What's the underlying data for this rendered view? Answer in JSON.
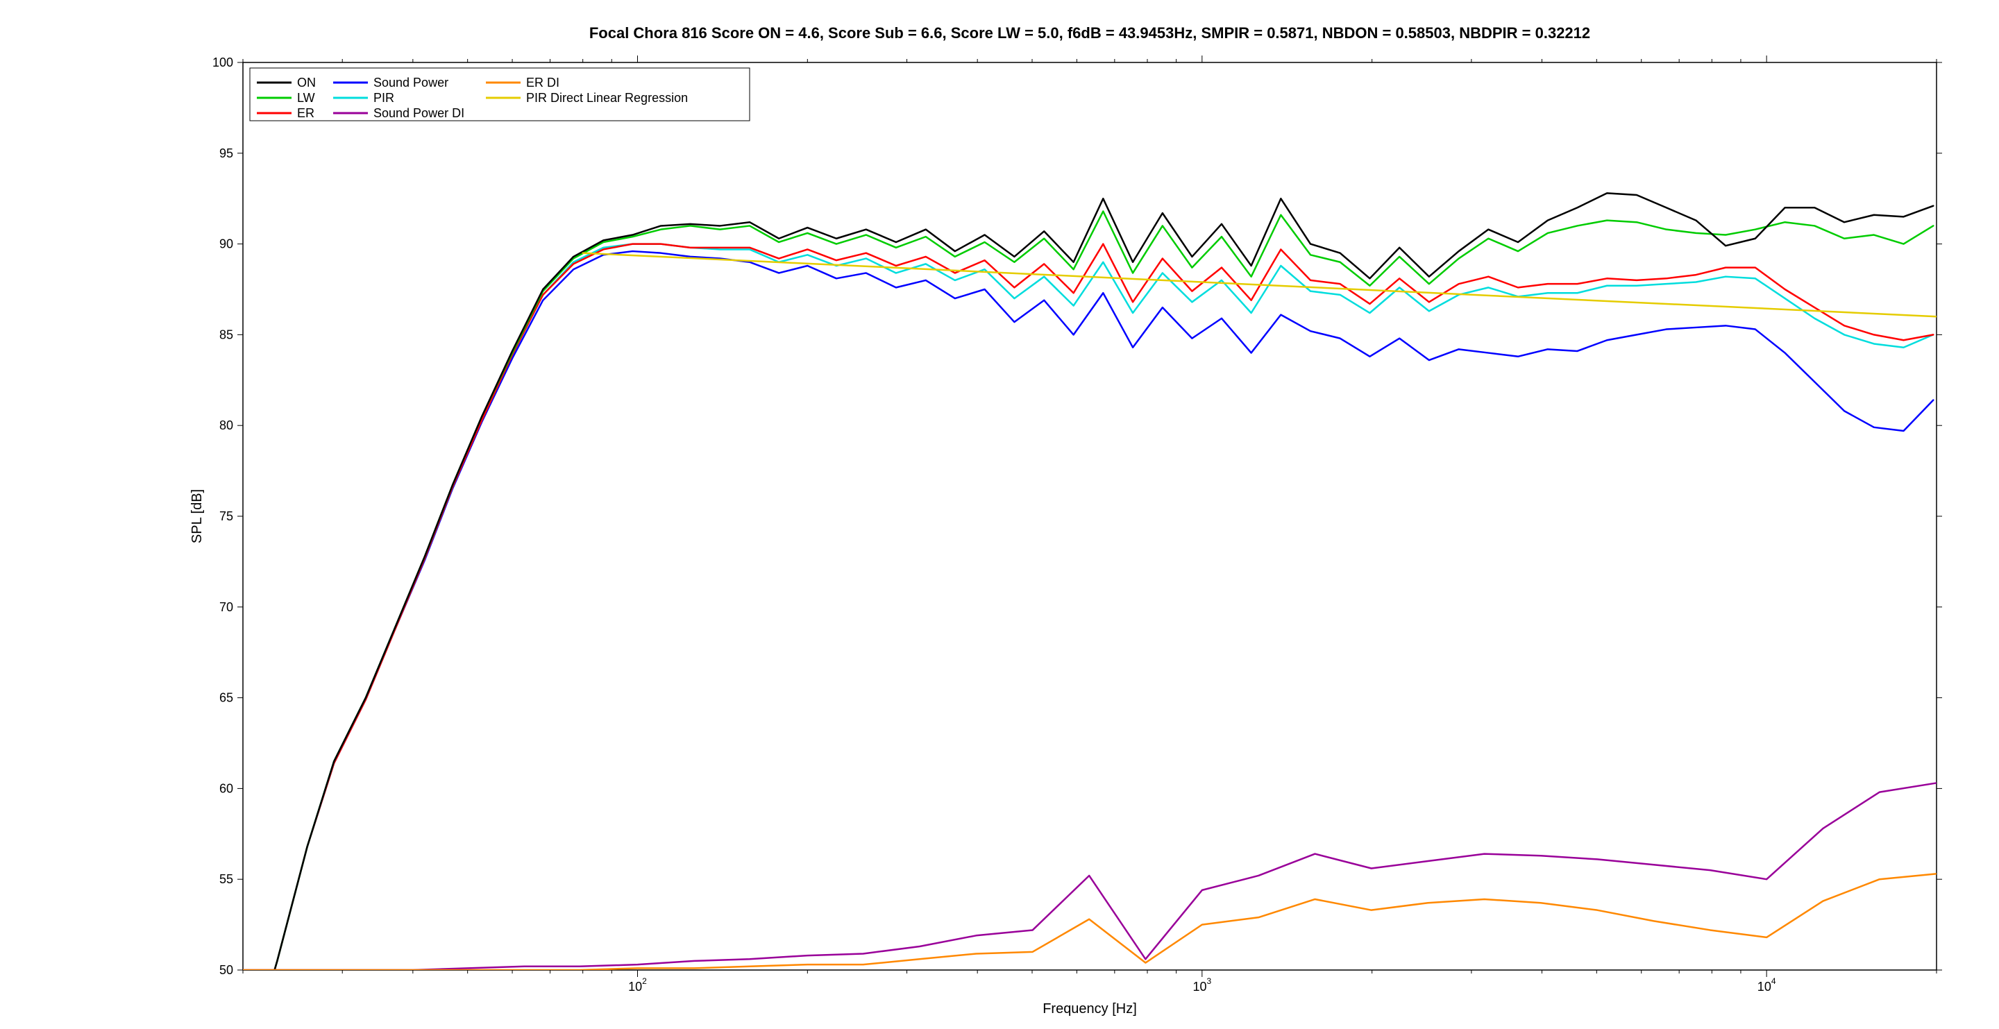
{
  "chart": {
    "type": "line",
    "title": "Focal Chora 816 Score ON = 4.6, Score Sub = 6.6, Score LW = 5.0, f6dB = 43.9453Hz, SMPIR = 0.5871, NBDON = 0.58503, NBDPIR = 0.32212",
    "title_fontsize": 22,
    "title_fontweight": "bold",
    "xlabel": "Frequency [Hz]",
    "ylabel": "SPL [dB]",
    "label_fontsize": 20,
    "tick_fontsize": 18,
    "background_color": "#ffffff",
    "plot_border_color": "#000000",
    "xscale": "log",
    "xlim": [
      20,
      20000
    ],
    "ylim": [
      50,
      100
    ],
    "ytick_step": 5,
    "x_major_ticks": [
      100,
      1000,
      10000
    ],
    "x_tick_labels": {
      "100": "10^2",
      "1000": "10^3",
      "10000": "10^4"
    },
    "legend": {
      "position": "top-left",
      "border_color": "#000000",
      "bg_color": "#ffffff",
      "fontsize": 18,
      "columns": 3,
      "entries": [
        {
          "label": "ON",
          "color": "#000000"
        },
        {
          "label": "LW",
          "color": "#00cc00"
        },
        {
          "label": "ER",
          "color": "#ff0000"
        },
        {
          "label": "Sound Power",
          "color": "#0000ff"
        },
        {
          "label": "PIR",
          "color": "#00dddd"
        },
        {
          "label": "Sound Power DI",
          "color": "#990099"
        },
        {
          "label": "ER DI",
          "color": "#ff8800"
        },
        {
          "label": "PIR Direct Linear Regression",
          "color": "#e5cc00"
        }
      ]
    },
    "pir_regression": {
      "start": [
        80,
        89.5
      ],
      "end": [
        20000,
        86.0
      ],
      "color": "#e5cc00"
    },
    "series": {
      "ON": {
        "color": "#000000",
        "x": [
          20,
          23,
          26,
          29,
          33,
          37,
          42,
          47,
          53,
          60,
          68,
          77,
          87,
          98,
          110,
          124,
          140,
          158,
          178,
          200,
          225,
          254,
          287,
          324,
          365,
          412,
          465,
          525,
          592,
          668,
          754,
          851,
          960,
          1083,
          1222,
          1379,
          1556,
          1756,
          1982,
          2237,
          2524,
          2849,
          3215,
          3628,
          4095,
          4621,
          5215,
          5886,
          6643,
          7497,
          8461,
          9549,
          10777,
          12163,
          13727,
          15493,
          17485,
          19734
        ],
        "y": [
          44.0,
          50.5,
          56.8,
          61.5,
          65.0,
          68.7,
          72.8,
          76.7,
          80.5,
          84.1,
          87.5,
          89.3,
          90.2,
          90.5,
          91.0,
          91.1,
          91.0,
          91.2,
          90.3,
          90.9,
          90.3,
          90.8,
          90.1,
          90.8,
          89.6,
          90.5,
          89.3,
          90.7,
          89.0,
          92.5,
          89.0,
          91.7,
          89.3,
          91.1,
          88.8,
          92.5,
          90.0,
          89.5,
          88.1,
          89.8,
          88.2,
          89.6,
          90.8,
          90.1,
          91.3,
          92.0,
          92.8,
          92.7,
          92.0,
          91.3,
          89.9,
          90.3,
          92.0,
          92.0,
          91.2,
          91.6,
          91.5,
          92.1
        ]
      },
      "LW": {
        "color": "#00cc00",
        "x": [
          20,
          23,
          26,
          29,
          33,
          37,
          42,
          47,
          53,
          60,
          68,
          77,
          87,
          98,
          110,
          124,
          140,
          158,
          178,
          200,
          225,
          254,
          287,
          324,
          365,
          412,
          465,
          525,
          592,
          668,
          754,
          851,
          960,
          1083,
          1222,
          1379,
          1556,
          1756,
          1982,
          2237,
          2524,
          2849,
          3215,
          3628,
          4095,
          4621,
          5215,
          5886,
          6643,
          7497,
          8461,
          9549,
          10777,
          12163,
          13727,
          15493,
          17485,
          19734
        ],
        "y": [
          44.0,
          50.5,
          56.8,
          61.5,
          65.0,
          68.7,
          72.8,
          76.7,
          80.5,
          84.0,
          87.4,
          89.2,
          90.1,
          90.4,
          90.8,
          91.0,
          90.8,
          91.0,
          90.1,
          90.6,
          90.0,
          90.5,
          89.8,
          90.4,
          89.3,
          90.1,
          89.0,
          90.3,
          88.6,
          91.8,
          88.4,
          91.0,
          88.7,
          90.4,
          88.2,
          91.6,
          89.4,
          89.0,
          87.7,
          89.3,
          87.8,
          89.2,
          90.3,
          89.6,
          90.6,
          91.0,
          91.3,
          91.2,
          90.8,
          90.6,
          90.5,
          90.8,
          91.2,
          91.0,
          90.3,
          90.5,
          90.0,
          91.0
        ]
      },
      "ER": {
        "color": "#ff0000",
        "x": [
          20,
          23,
          26,
          29,
          33,
          37,
          42,
          47,
          53,
          60,
          68,
          77,
          87,
          98,
          110,
          124,
          140,
          158,
          178,
          200,
          225,
          254,
          287,
          324,
          365,
          412,
          465,
          525,
          592,
          668,
          754,
          851,
          960,
          1083,
          1222,
          1379,
          1556,
          1756,
          1982,
          2237,
          2524,
          2849,
          3215,
          3628,
          4095,
          4621,
          5215,
          5886,
          6643,
          7497,
          8461,
          9549,
          10777,
          12163,
          13727,
          15493,
          17485,
          19734
        ],
        "y": [
          44.0,
          50.5,
          56.8,
          61.4,
          64.9,
          68.6,
          72.7,
          76.6,
          80.3,
          83.9,
          87.2,
          88.9,
          89.7,
          90.0,
          90.0,
          89.8,
          89.8,
          89.8,
          89.2,
          89.7,
          89.1,
          89.5,
          88.8,
          89.3,
          88.4,
          89.1,
          87.6,
          88.9,
          87.3,
          90.0,
          86.8,
          89.2,
          87.4,
          88.7,
          86.9,
          89.7,
          88.0,
          87.8,
          86.7,
          88.1,
          86.8,
          87.8,
          88.2,
          87.6,
          87.8,
          87.8,
          88.1,
          88.0,
          88.1,
          88.3,
          88.7,
          88.7,
          87.5,
          86.5,
          85.5,
          85.0,
          84.7,
          85.0
        ]
      },
      "SP": {
        "color": "#0000ff",
        "x": [
          20,
          23,
          26,
          29,
          33,
          37,
          42,
          47,
          53,
          60,
          68,
          77,
          87,
          98,
          110,
          124,
          140,
          158,
          178,
          200,
          225,
          254,
          287,
          324,
          365,
          412,
          465,
          525,
          592,
          668,
          754,
          851,
          960,
          1083,
          1222,
          1379,
          1556,
          1756,
          1982,
          2237,
          2524,
          2849,
          3215,
          3628,
          4095,
          4621,
          5215,
          5886,
          6643,
          7497,
          8461,
          9549,
          10777,
          12163,
          13727,
          15493,
          17485,
          19734
        ],
        "y": [
          44.0,
          50.5,
          56.8,
          61.4,
          64.9,
          68.6,
          72.6,
          76.5,
          80.2,
          83.7,
          86.9,
          88.6,
          89.4,
          89.6,
          89.5,
          89.3,
          89.2,
          89.0,
          88.4,
          88.8,
          88.1,
          88.4,
          87.6,
          88.0,
          87.0,
          87.5,
          85.7,
          86.9,
          85.0,
          87.3,
          84.3,
          86.5,
          84.8,
          85.9,
          84.0,
          86.1,
          85.2,
          84.8,
          83.8,
          84.8,
          83.6,
          84.2,
          84.0,
          83.8,
          84.2,
          84.1,
          84.7,
          85.0,
          85.3,
          85.4,
          85.5,
          85.3,
          84.0,
          82.4,
          80.8,
          79.9,
          79.7,
          81.4
        ]
      },
      "PIR": {
        "color": "#00dddd",
        "x": [
          20,
          23,
          26,
          29,
          33,
          37,
          42,
          47,
          53,
          60,
          68,
          77,
          87,
          98,
          110,
          124,
          140,
          158,
          178,
          200,
          225,
          254,
          287,
          324,
          365,
          412,
          465,
          525,
          592,
          668,
          754,
          851,
          960,
          1083,
          1222,
          1379,
          1556,
          1756,
          1982,
          2237,
          2524,
          2849,
          3215,
          3628,
          4095,
          4621,
          5215,
          5886,
          6643,
          7497,
          8461,
          9549,
          10777,
          12163,
          13727,
          15493,
          17485,
          19734
        ],
        "y": [
          44.0,
          50.5,
          56.8,
          61.5,
          65.0,
          68.7,
          72.7,
          76.6,
          80.4,
          83.9,
          87.2,
          89.0,
          89.8,
          90.0,
          90.0,
          89.8,
          89.7,
          89.7,
          89.0,
          89.4,
          88.8,
          89.2,
          88.4,
          88.9,
          88.0,
          88.6,
          87.0,
          88.2,
          86.6,
          89.0,
          86.2,
          88.4,
          86.8,
          88.0,
          86.2,
          88.8,
          87.4,
          87.2,
          86.2,
          87.6,
          86.3,
          87.2,
          87.6,
          87.1,
          87.3,
          87.3,
          87.7,
          87.7,
          87.8,
          87.9,
          88.2,
          88.1,
          87.0,
          85.9,
          85.0,
          84.5,
          84.3,
          85.0
        ]
      },
      "SPDI": {
        "color": "#990099",
        "x": [
          20,
          25,
          32,
          40,
          50,
          63,
          79,
          100,
          126,
          158,
          200,
          251,
          316,
          398,
          501,
          631,
          794,
          1000,
          1259,
          1585,
          1995,
          2512,
          3162,
          3981,
          5012,
          6310,
          7943,
          10000,
          12589,
          15849,
          19953
        ],
        "y": [
          50.0,
          50.0,
          50.0,
          50.0,
          50.1,
          50.2,
          50.2,
          50.3,
          50.5,
          50.6,
          50.8,
          50.9,
          51.3,
          51.9,
          52.2,
          55.2,
          50.6,
          54.4,
          55.2,
          56.4,
          55.6,
          56.0,
          56.4,
          56.3,
          56.1,
          55.8,
          55.5,
          55.0,
          57.8,
          59.8,
          60.3
        ]
      },
      "ERDI": {
        "color": "#ff8800",
        "x": [
          20,
          25,
          32,
          40,
          50,
          63,
          79,
          100,
          126,
          158,
          200,
          251,
          316,
          398,
          501,
          631,
          794,
          1000,
          1259,
          1585,
          1995,
          2512,
          3162,
          3981,
          5012,
          6310,
          7943,
          10000,
          12589,
          15849,
          19953
        ],
        "y": [
          50.0,
          50.0,
          50.0,
          50.0,
          50.0,
          50.0,
          50.0,
          50.1,
          50.1,
          50.2,
          50.3,
          50.3,
          50.6,
          50.9,
          51.0,
          52.8,
          50.4,
          52.5,
          52.9,
          53.9,
          53.3,
          53.7,
          53.9,
          53.7,
          53.3,
          52.7,
          52.2,
          51.8,
          53.8,
          55.0,
          55.3
        ]
      }
    }
  }
}
